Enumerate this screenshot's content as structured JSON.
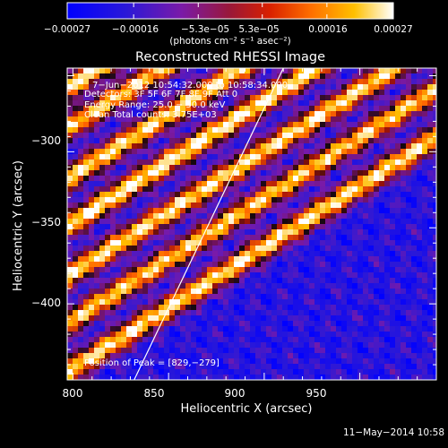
{
  "chart_data": {
    "type": "heatmap",
    "title": "Reconstructed RHESSI Image",
    "xlabel": "Heliocentric X (arcsec)",
    "ylabel": "Heliocentric Y (arcsec)",
    "xlim": [
      797,
      990
    ],
    "ylim": [
      -450,
      -245
    ],
    "x_ticks": [
      800,
      850,
      900,
      950
    ],
    "x_tick_labels": [
      "800",
      "850",
      "900",
      "950"
    ],
    "y_ticks": [
      -300,
      -350,
      -400
    ],
    "y_tick_labels": [
      "−300",
      "−350",
      "−400"
    ],
    "colorbar": {
      "colormap": "blue-purple-red-yellow-white",
      "range": [
        -0.00027,
        0.00027
      ],
      "tick_values": [
        -0.00027,
        -0.00016,
        -5.3e-05,
        5.3e-05,
        0.00016,
        0.00027
      ],
      "tick_labels_lower": [
        "−0.00027",
        "−0.00016",
        "0.00016",
        "0.00027"
      ],
      "tick_labels_upper": [
        "−5.3e−05",
        "5.3e−05"
      ],
      "unit_label": "(photons cm⁻² s⁻¹ asec⁻²)"
    },
    "annotations": {
      "time_range": "7−Jun−2012 10:54:32.000 to 10:58:34.000",
      "detectors": "Detectors: 3F 5F 6F 7F 8F 9F Att 0",
      "energy_range": "Energy Range: 25.0 − 50.0 keV",
      "clean_counts": "Clean      Total counts: 3.75E+03",
      "peak": "Position of Peak = [829,−279]"
    },
    "peak_position": [
      829,
      -279
    ],
    "limb_line": [
      [
        832,
        -450
      ],
      [
        910,
        -245
      ]
    ],
    "bands": [
      {
        "x0": 797,
        "y0": -258,
        "amplitude": 1.0
      },
      {
        "x0": 797,
        "y0": -285,
        "amplitude": 0.9
      },
      {
        "x0": 797,
        "y0": -318,
        "amplitude": 0.95
      },
      {
        "x0": 797,
        "y0": -349,
        "amplitude": 1.0
      },
      {
        "x0": 797,
        "y0": -382,
        "amplitude": 0.95
      },
      {
        "x0": 797,
        "y0": -413,
        "amplitude": 0.9
      },
      {
        "x0": 797,
        "y0": -445,
        "amplitude": 0.95
      }
    ],
    "band_slope": 0.8
  },
  "footer": {
    "date_stamp": "11−May−2014 10:58"
  }
}
